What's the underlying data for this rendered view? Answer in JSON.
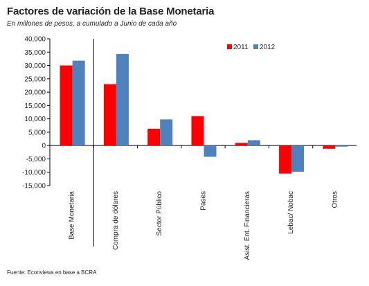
{
  "title": "Factores de variación de la Base Monetaria",
  "subtitle": "En millones de pesos, a cumulado a Junio de cada año",
  "source": "Fuente: Econviews en base a BCRA",
  "chart_data": {
    "type": "bar",
    "categories": [
      "Base Monetaria",
      "Compra de dólares",
      "Sector Público",
      "Pases",
      "Asist. Ent. Financieras",
      "Lebac/ Nobac",
      "Otros"
    ],
    "series": [
      {
        "name": "2011",
        "color": "#ff0000",
        "values": [
          30000,
          23000,
          6300,
          11000,
          1000,
          -10500,
          -1200
        ]
      },
      {
        "name": "2012",
        "color": "#4f81bd",
        "values": [
          31800,
          34300,
          9800,
          -4200,
          2000,
          -9800,
          -400
        ]
      }
    ],
    "yticks": [
      40000,
      35000,
      30000,
      25000,
      20000,
      15000,
      10000,
      5000,
      0,
      -5000,
      -10000,
      -15000
    ],
    "ytick_labels": [
      "40,000",
      "35,000",
      "30,000",
      "25,000",
      "20,000",
      "15,000",
      "10,000",
      "5,000",
      "0",
      "-5,000",
      "-10,000",
      "-15,000"
    ],
    "ylim": [
      -15000,
      40000
    ],
    "legend_position": "top-right",
    "grid": false
  }
}
